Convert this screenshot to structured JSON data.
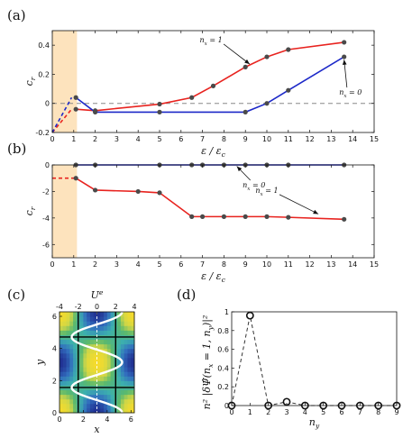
{
  "panel_labels": {
    "a": "(a)",
    "b": "(b)",
    "c": "(c)",
    "d": "(d)"
  },
  "colors": {
    "red": "#e8231f",
    "blue": "#1c28c8",
    "shade": "#fde3bd",
    "marker": "#4a4a4a"
  },
  "chart_data": [
    {
      "id": "a",
      "type": "line",
      "xlabel": "ε / ε_c",
      "ylabel": "c_r",
      "xlim": [
        0,
        15
      ],
      "ylim": [
        -0.2,
        0.5
      ],
      "xticks": [
        0,
        1,
        2,
        3,
        4,
        5,
        6,
        7,
        8,
        9,
        10,
        11,
        12,
        13,
        14,
        15
      ],
      "yticks": [
        -0.2,
        0,
        0.2,
        0.4
      ],
      "ytick_labels": [
        "-0.2",
        "0",
        "0.2",
        "0.4"
      ],
      "shaded_x": [
        0,
        1.15
      ],
      "reference_line_y": 0,
      "series": [
        {
          "color": "red",
          "x": [
            1.1,
            2,
            5,
            6.5,
            7.5,
            9,
            10,
            11,
            13.6
          ],
          "y": [
            -0.04,
            -0.05,
            -0.005,
            0.04,
            0.12,
            0.25,
            0.32,
            0.37,
            0.42
          ],
          "dashed_x": [
            0,
            0.9
          ],
          "dashed_y": [
            -0.2,
            -0.04
          ]
        },
        {
          "color": "blue",
          "x": [
            1.1,
            2,
            5,
            9,
            10,
            11,
            13.6
          ],
          "y": [
            0.04,
            -0.06,
            -0.06,
            -0.06,
            0.0,
            0.09,
            0.32
          ],
          "dashed_x": [
            0,
            0.9
          ],
          "dashed_y": [
            -0.2,
            0.04
          ]
        }
      ],
      "annotations": [
        {
          "text": "n_x = 1",
          "x": 7.4,
          "y": 0.42,
          "ax": 9.2,
          "ay": 0.27
        },
        {
          "text": "n_x = 0",
          "x": 13.9,
          "y": 0.06,
          "ax": 13.6,
          "ay": 0.3
        }
      ]
    },
    {
      "id": "b",
      "type": "line",
      "xlabel": "ε / ε_c",
      "ylabel": "c_r",
      "xlim": [
        0,
        15
      ],
      "ylim": [
        -7,
        0
      ],
      "xticks": [
        0,
        1,
        2,
        3,
        4,
        5,
        6,
        7,
        8,
        9,
        10,
        11,
        12,
        13,
        14,
        15
      ],
      "yticks": [
        -6,
        -4,
        -2,
        0
      ],
      "ytick_labels": [
        "-6",
        "-4",
        "-2",
        "0"
      ],
      "shaded_x": [
        0,
        1.15
      ],
      "series": [
        {
          "color": "blue",
          "x": [
            1.1,
            2,
            5,
            6.5,
            7,
            8,
            9,
            10,
            11,
            13.6
          ],
          "y": [
            0,
            0,
            0,
            0,
            0,
            0,
            0,
            0,
            0,
            0
          ]
        },
        {
          "color": "red",
          "x": [
            1.1,
            2,
            4,
            5,
            6.5,
            7,
            8,
            9,
            10,
            11,
            13.6
          ],
          "y": [
            -1.0,
            -1.9,
            -2.0,
            -2.1,
            -3.9,
            -3.9,
            -3.9,
            -3.9,
            -3.9,
            -3.95,
            -4.1
          ],
          "dashed_x": [
            0,
            1.1
          ],
          "dashed_y": [
            -1.0,
            -1.0
          ]
        }
      ],
      "annotations": [
        {
          "text": "n_x = 0",
          "x": 9.4,
          "y": -1.7,
          "ax": 8.6,
          "ay": -0.1
        },
        {
          "text": "n_x = 1",
          "x": 10.0,
          "y": -2.1,
          "ax": 12.4,
          "ay": -3.7
        }
      ]
    },
    {
      "id": "c",
      "type": "heatmap",
      "title": "U^e",
      "xlabel": "x",
      "ylabel": "y",
      "xlim": [
        0,
        6.28
      ],
      "ylim": [
        0,
        6.28
      ],
      "xticks": [
        0,
        2,
        4,
        6
      ],
      "yticks": [
        0,
        2,
        4,
        6
      ],
      "top_xlim": [
        -4,
        4
      ],
      "top_xticks": [
        -4,
        -2,
        0,
        2,
        4
      ]
    },
    {
      "id": "d",
      "type": "scatter",
      "xlabel": "n_y",
      "ylabel": "n² |δΨ̂(n_x = 1, n_y)|²",
      "xlim": [
        0,
        9
      ],
      "ylim": [
        0,
        1
      ],
      "xticks": [
        0,
        1,
        2,
        3,
        4,
        5,
        6,
        7,
        8,
        9
      ],
      "yticks": [
        0,
        0.2,
        0.4,
        0.6,
        0.8,
        1
      ],
      "ytick_labels": [
        "0",
        "0.2",
        "0.4",
        "0.6",
        "0.8",
        "1"
      ],
      "x": [
        0,
        1,
        2,
        3,
        4,
        5,
        6,
        7,
        8,
        9
      ],
      "y": [
        0,
        0.96,
        0,
        0.04,
        0,
        0,
        0,
        0,
        0,
        0
      ]
    }
  ]
}
